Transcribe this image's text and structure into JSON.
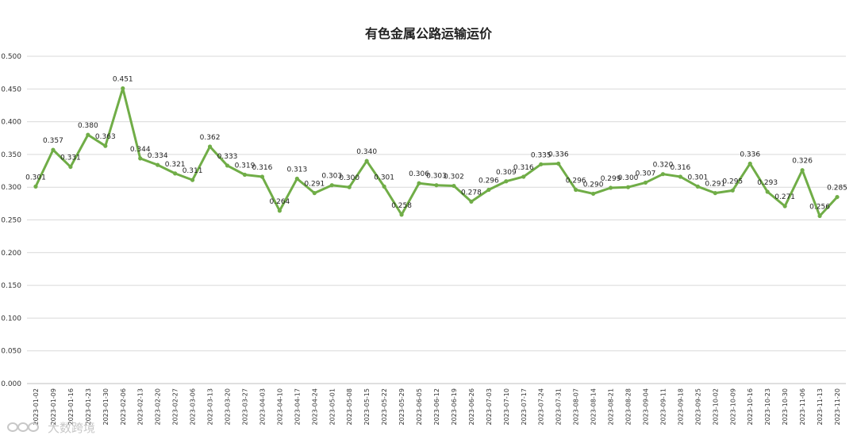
{
  "chart_data": {
    "type": "line",
    "title": "有色金属公路运输运价",
    "xlabel": "",
    "ylabel": "",
    "ylim": [
      0,
      0.5
    ],
    "yticks": [
      "0.000",
      "0.050",
      "0.100",
      "0.150",
      "0.200",
      "0.250",
      "0.300",
      "0.350",
      "0.400",
      "0.450",
      "0.500"
    ],
    "grid": true,
    "legend": "none",
    "series_color": "#70ad47",
    "categories": [
      "2023-01-02",
      "2023-01-09",
      "2023-01-16",
      "2023-01-23",
      "2023-01-30",
      "2023-02-06",
      "2023-02-13",
      "2023-02-20",
      "2023-02-27",
      "2023-03-06",
      "2023-03-13",
      "2023-03-20",
      "2023-03-27",
      "2023-04-03",
      "2023-04-10",
      "2023-04-17",
      "2023-04-24",
      "2023-05-01",
      "2023-05-08",
      "2023-05-15",
      "2023-05-22",
      "2023-05-29",
      "2023-06-05",
      "2023-06-12",
      "2023-06-19",
      "2023-06-26",
      "2023-07-03",
      "2023-07-10",
      "2023-07-17",
      "2023-07-24",
      "2023-07-31",
      "2023-08-07",
      "2023-08-14",
      "2023-08-21",
      "2023-08-28",
      "2023-09-04",
      "2023-09-11",
      "2023-09-18",
      "2023-09-25",
      "2023-10-02",
      "2023-10-09",
      "2023-10-16",
      "2023-10-23",
      "2023-10-30",
      "2023-11-06",
      "2023-11-13",
      "2023-11-20"
    ],
    "values": [
      0.301,
      0.357,
      0.331,
      0.38,
      0.363,
      0.451,
      0.344,
      0.334,
      0.321,
      0.311,
      0.362,
      0.333,
      0.319,
      0.316,
      0.264,
      0.313,
      0.291,
      0.303,
      0.3,
      0.34,
      0.301,
      0.258,
      0.306,
      0.303,
      0.302,
      0.278,
      0.296,
      0.309,
      0.316,
      0.335,
      0.336,
      0.296,
      0.29,
      0.299,
      0.3,
      0.307,
      0.32,
      0.316,
      0.301,
      0.291,
      0.295,
      0.336,
      0.293,
      0.271,
      0.326,
      0.256,
      0.285
    ],
    "labels": [
      "0.301",
      "0.357",
      "0.331",
      "0.380",
      "0.363",
      "0.451",
      "0.344",
      "0.334",
      "0.321",
      "0.311",
      "0.362",
      "0.333",
      "0.319",
      "0.316",
      "0.264",
      "0.313",
      "0.291",
      "0.303",
      "0.300",
      "0.340",
      "0.301",
      "0.258",
      "0.306",
      "0.303",
      "0.302",
      "0.278",
      "0.296",
      "0.309",
      "0.316",
      "0.335",
      "0.336",
      "0.296",
      "0.290",
      "0.299",
      "0.300",
      "0.307",
      "0.320",
      "0.316",
      "0.301",
      "0.291",
      "0.295",
      "0.336",
      "0.293",
      "0.271",
      "0.326",
      "0.256",
      "0.285"
    ]
  },
  "watermark": {
    "text": "大数跨境",
    "icon": "infinity-icon"
  }
}
